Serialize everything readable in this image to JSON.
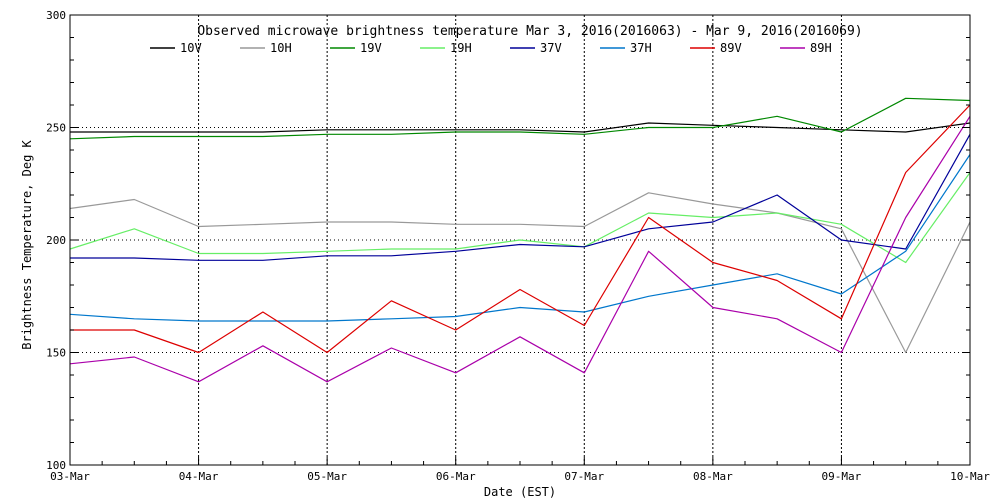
{
  "chart_data": {
    "type": "line",
    "title": "Observed microwave brightness temperature Mar  3, 2016(2016063) - Mar  9, 2016(2016069)",
    "xlabel": "Date (EST)",
    "ylabel": "Brightness Temperature, Deg K",
    "ylim": [
      100,
      300
    ],
    "xlim": [
      "2016-03-03",
      "2016-03-10"
    ],
    "yticks": [
      "100",
      "150",
      "200",
      "250",
      "300"
    ],
    "categories": [
      "03-Mar",
      "04-Mar",
      "05-Mar",
      "06-Mar",
      "07-Mar",
      "08-Mar",
      "09-Mar",
      "10-Mar"
    ],
    "x": [
      "2016-03-03",
      "2016-03-03 12:00",
      "2016-03-04",
      "2016-03-04 12:00",
      "2016-03-05",
      "2016-03-05 12:00",
      "2016-03-06",
      "2016-03-06 12:00",
      "2016-03-07",
      "2016-03-07 12:00",
      "2016-03-08",
      "2016-03-08 12:00",
      "2016-03-09",
      "2016-03-09 12:00",
      "2016-03-10"
    ],
    "grid": "vertical dotted lines at each day; horizontal dotted lines at 150, 200, 250",
    "legend": "top",
    "series": [
      {
        "name": "10V",
        "color": "#000000",
        "values": [
          248,
          248,
          248,
          248,
          249,
          249,
          249,
          249,
          248,
          252,
          251,
          250,
          249,
          248,
          252
        ]
      },
      {
        "name": "10H",
        "color": "#999999",
        "values": [
          214,
          218,
          206,
          207,
          208,
          208,
          207,
          207,
          206,
          221,
          216,
          212,
          205,
          150,
          208
        ]
      },
      {
        "name": "19V",
        "color": "#008800",
        "values": [
          245,
          246,
          246,
          246,
          247,
          247,
          248,
          248,
          247,
          250,
          250,
          255,
          248,
          263,
          262
        ]
      },
      {
        "name": "19H",
        "color": "#66ee66",
        "values": [
          196,
          205,
          194,
          194,
          195,
          196,
          196,
          200,
          197,
          212,
          210,
          212,
          207,
          190,
          230
        ]
      },
      {
        "name": "37V",
        "color": "#000099",
        "values": [
          192,
          192,
          191,
          191,
          193,
          193,
          195,
          198,
          197,
          205,
          208,
          220,
          200,
          196,
          247
        ]
      },
      {
        "name": "37H",
        "color": "#0077cc",
        "values": [
          167,
          165,
          164,
          164,
          164,
          165,
          166,
          170,
          168,
          175,
          180,
          185,
          176,
          195,
          238
        ]
      },
      {
        "name": "89V",
        "color": "#dd0000",
        "values": [
          160,
          160,
          150,
          168,
          150,
          173,
          160,
          178,
          162,
          210,
          190,
          182,
          165,
          230,
          260
        ]
      },
      {
        "name": "89H",
        "color": "#aa00aa",
        "values": [
          145,
          148,
          137,
          153,
          137,
          152,
          141,
          157,
          141,
          195,
          170,
          165,
          150,
          210,
          255
        ]
      }
    ]
  }
}
